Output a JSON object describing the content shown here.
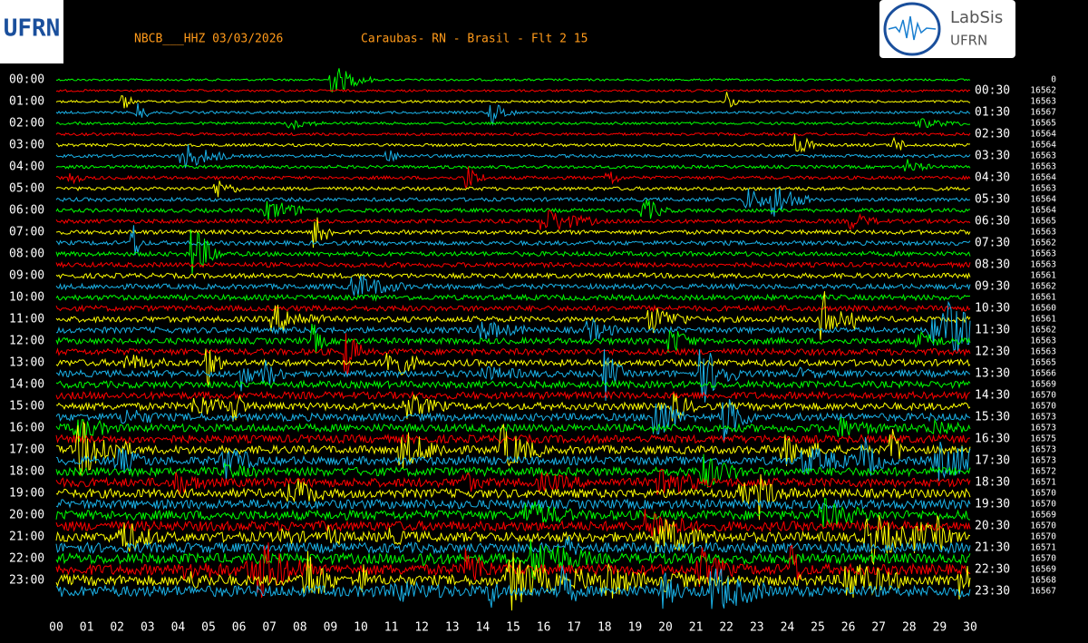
{
  "header": {
    "station": "NBCB___HHZ 03/03/2026",
    "location": "Caraubas- RN - Brasil - Flt 2 15"
  },
  "logo_left": {
    "text": "UFRN"
  },
  "logo_right": {
    "title": "LabSis",
    "subtitle": "UFRN"
  },
  "left_times": [
    "00:00",
    "01:00",
    "02:00",
    "03:00",
    "04:00",
    "05:00",
    "06:00",
    "07:00",
    "08:00",
    "09:00",
    "10:00",
    "11:00",
    "12:00",
    "13:00",
    "14:00",
    "15:00",
    "16:00",
    "17:00",
    "18:00",
    "19:00",
    "20:00",
    "21:00",
    "22:00",
    "23:00"
  ],
  "right_times": [
    "00:30",
    "01:30",
    "02:30",
    "03:30",
    "04:30",
    "05:30",
    "06:30",
    "07:30",
    "08:30",
    "09:30",
    "10:30",
    "11:30",
    "12:30",
    "13:30",
    "14:30",
    "15:30",
    "16:30",
    "17:30",
    "18:30",
    "19:30",
    "20:30",
    "21:30",
    "22:30",
    "23:30"
  ],
  "right_values": [
    "0",
    "16562",
    "16563",
    "16567",
    "16565",
    "16564",
    "16564",
    "16563",
    "16563",
    "16564",
    "16563",
    "16564",
    "16564",
    "16565",
    "16563",
    "16562",
    "16563",
    "16563",
    "16561",
    "16562",
    "16561",
    "16560",
    "16561",
    "16562",
    "16563",
    "16563",
    "16565",
    "16566",
    "16569",
    "16570",
    "16570",
    "16573",
    "16573",
    "16575",
    "16573",
    "16573",
    "16572",
    "16571",
    "16570",
    "16570",
    "16569",
    "16570",
    "16570",
    "16571",
    "16570",
    "16569",
    "16568",
    "16567"
  ],
  "x_labels": [
    "00",
    "01",
    "02",
    "03",
    "04",
    "05",
    "06",
    "07",
    "08",
    "09",
    "10",
    "11",
    "12",
    "13",
    "14",
    "15",
    "16",
    "17",
    "18",
    "19",
    "20",
    "21",
    "22",
    "23",
    "24",
    "25",
    "26",
    "27",
    "28",
    "29",
    "30"
  ]
}
